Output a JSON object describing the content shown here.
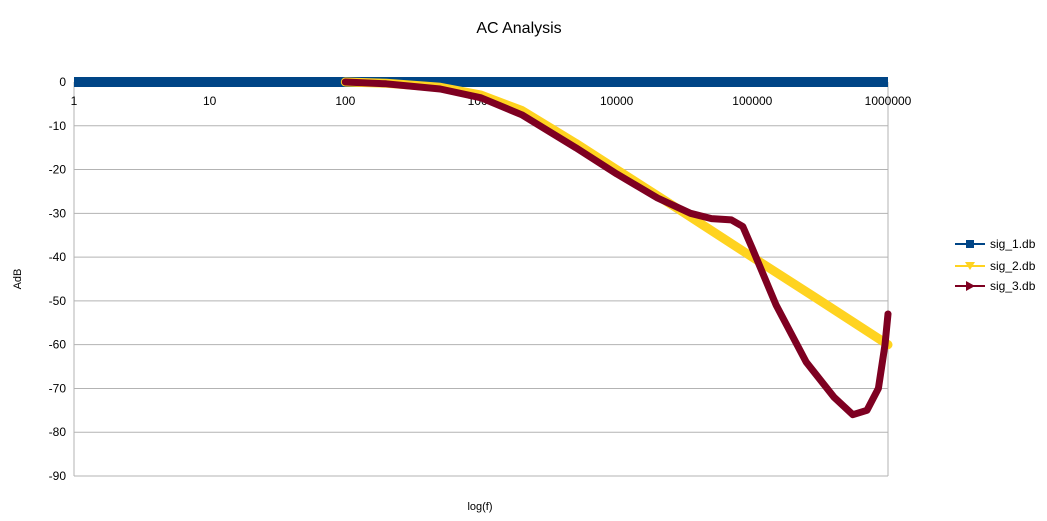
{
  "chart_data": {
    "type": "line",
    "title": "AC Analysis",
    "xlabel": "log(f)",
    "ylabel": "AdB",
    "xscale": "log",
    "xlim": [
      1,
      1000000
    ],
    "ylim": [
      -90,
      0
    ],
    "x_ticks": [
      "1",
      "10",
      "100",
      "1000",
      "10000",
      "100000",
      "1000000"
    ],
    "y_ticks": [
      "0",
      "-10",
      "-20",
      "-30",
      "-40",
      "-50",
      "-60",
      "-70",
      "-80",
      "-90"
    ],
    "grid": "horizontal",
    "legend_position": "right",
    "series": [
      {
        "name": "sig_1.db",
        "color": "#004586",
        "marker": "square",
        "x": [
          1,
          10,
          100,
          1000,
          10000,
          100000,
          1000000
        ],
        "y": [
          0,
          0,
          0,
          0,
          0,
          0,
          0
        ]
      },
      {
        "name": "sig_2.db",
        "color": "#ffd320",
        "marker": "triangle-down",
        "x": [
          100,
          200,
          500,
          1000,
          2000,
          5000,
          10000,
          30000,
          100000,
          300000,
          1000000
        ],
        "y": [
          0,
          -0.3,
          -1.2,
          -3,
          -6.5,
          -14,
          -20,
          -29.5,
          -40,
          -49.5,
          -60
        ]
      },
      {
        "name": "sig_3.db",
        "color": "#7e0021",
        "marker": "triangle-right",
        "x": [
          100,
          200,
          500,
          1000,
          2000,
          5000,
          10000,
          20000,
          35000,
          50000,
          70000,
          85000,
          100000,
          150000,
          250000,
          400000,
          550000,
          700000,
          850000,
          950000,
          1000000
        ],
        "y": [
          0,
          -0.4,
          -1.6,
          -3.6,
          -7.5,
          -15,
          -21,
          -26.5,
          -30,
          -31.2,
          -31.5,
          -33,
          -38,
          -51,
          -64,
          -72,
          -76,
          -75,
          -70,
          -60,
          -53
        ]
      }
    ]
  }
}
